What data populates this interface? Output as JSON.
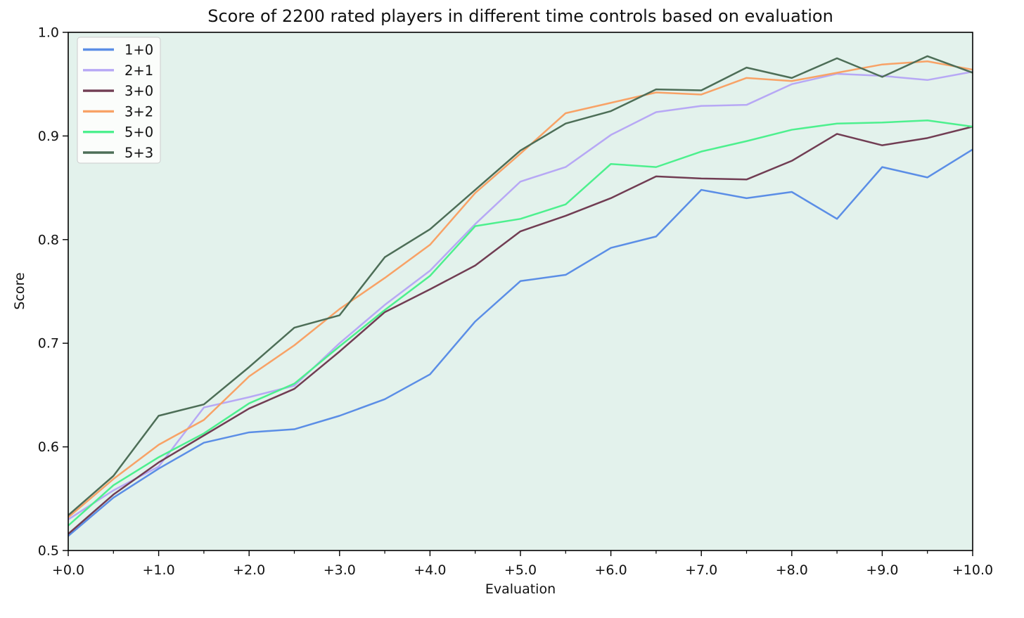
{
  "chart_data": {
    "type": "line",
    "title": "Score of 2200 rated players in different time controls based on evaluation",
    "xlabel": "Evaluation",
    "ylabel": "Score",
    "xlim": [
      0,
      10
    ],
    "ylim": [
      0.5,
      1.0
    ],
    "grid": false,
    "legend_position": "upper left",
    "plot_bg": "#e3f2ec",
    "fig_bg": "#ffffff",
    "axis_color": "#000000",
    "legend_bg": "#fdfefd",
    "legend_border": "#cccccc",
    "x": [
      0,
      0.5,
      1,
      1.5,
      2,
      2.5,
      3,
      3.5,
      4,
      4.5,
      5,
      5.5,
      6,
      6.5,
      7,
      7.5,
      8,
      8.5,
      9,
      9.5,
      10
    ],
    "xticks": [
      0,
      1,
      2,
      3,
      4,
      5,
      6,
      7,
      8,
      9,
      10
    ],
    "xtick_labels": [
      "+0.0",
      "+1.0",
      "+2.0",
      "+3.0",
      "+4.0",
      "+5.0",
      "+6.0",
      "+7.0",
      "+8.0",
      "+9.0",
      "+10.0"
    ],
    "minor_xticks": [
      0.5,
      1.5,
      2.5,
      3.5,
      4.5,
      5.5,
      6.5,
      7.5,
      8.5,
      9.5
    ],
    "yticks": [
      0.5,
      0.6,
      0.7,
      0.8,
      0.9,
      1.0
    ],
    "ytick_labels": [
      "0.5",
      "0.6",
      "0.7",
      "0.8",
      "0.9",
      "1.0"
    ],
    "series": [
      {
        "name": "1+0",
        "color": "#5b8ee6",
        "values": [
          0.514,
          0.551,
          0.579,
          0.604,
          0.614,
          0.617,
          0.63,
          0.646,
          0.67,
          0.721,
          0.76,
          0.766,
          0.792,
          0.803,
          0.848,
          0.84,
          0.846,
          0.82,
          0.87,
          0.86,
          0.887
        ]
      },
      {
        "name": "2+1",
        "color": "#b7a8f5",
        "values": [
          0.53,
          0.558,
          0.581,
          0.638,
          0.648,
          0.659,
          0.7,
          0.737,
          0.77,
          0.815,
          0.856,
          0.87,
          0.901,
          0.923,
          0.929,
          0.93,
          0.95,
          0.96,
          0.958,
          0.954,
          0.962
        ]
      },
      {
        "name": "3+0",
        "color": "#713d53",
        "values": [
          0.516,
          0.554,
          0.585,
          0.611,
          0.637,
          0.656,
          0.692,
          0.73,
          0.752,
          0.775,
          0.808,
          0.823,
          0.84,
          0.861,
          0.859,
          0.858,
          0.876,
          0.902,
          0.891,
          0.898,
          0.909
        ]
      },
      {
        "name": "3+2",
        "color": "#f8a266",
        "values": [
          0.532,
          0.569,
          0.602,
          0.626,
          0.668,
          0.698,
          0.733,
          0.763,
          0.795,
          0.845,
          0.883,
          0.922,
          0.932,
          0.942,
          0.94,
          0.956,
          0.953,
          0.961,
          0.969,
          0.972,
          0.964
        ]
      },
      {
        "name": "5+0",
        "color": "#4df08e",
        "values": [
          0.524,
          0.563,
          0.59,
          0.613,
          0.642,
          0.661,
          0.697,
          0.732,
          0.765,
          0.813,
          0.82,
          0.834,
          0.873,
          0.87,
          0.885,
          0.895,
          0.906,
          0.912,
          0.913,
          0.915,
          0.909
        ]
      },
      {
        "name": "5+3",
        "color": "#4d6e57",
        "values": [
          0.534,
          0.572,
          0.63,
          0.641,
          0.677,
          0.715,
          0.727,
          0.783,
          0.81,
          0.848,
          0.886,
          0.912,
          0.924,
          0.945,
          0.944,
          0.966,
          0.956,
          0.975,
          0.957,
          0.977,
          0.961
        ]
      }
    ]
  }
}
